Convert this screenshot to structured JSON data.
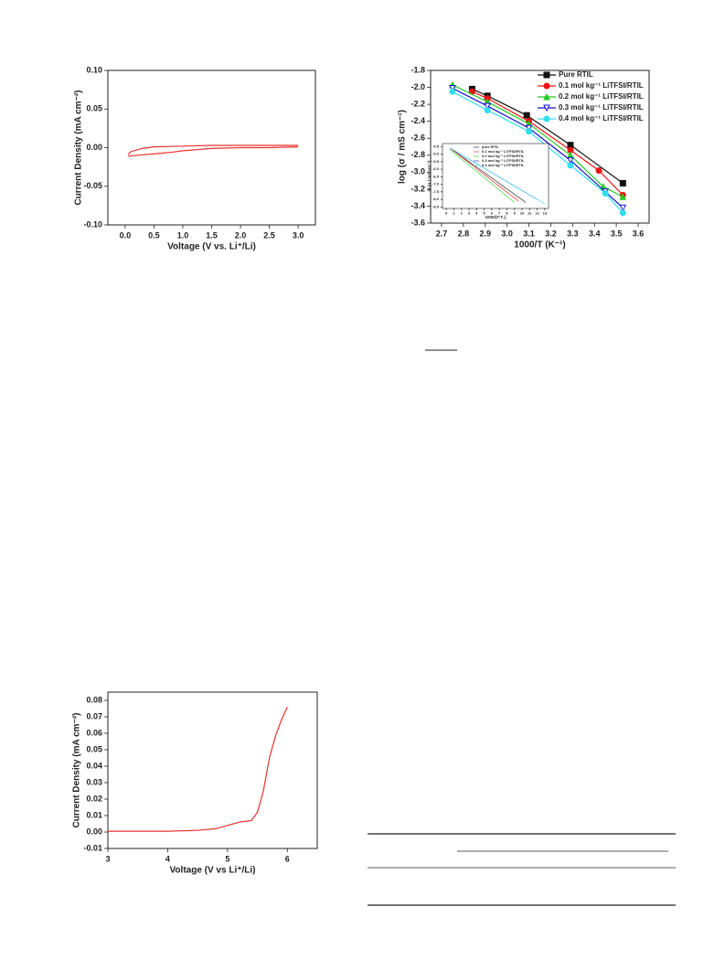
{
  "chart_data": [
    {
      "type": "line",
      "xlabel": "Voltage (V vs. Li⁺/Li)",
      "ylabel": "Current Density (mA cm⁻²)",
      "xlim": [
        -0.3,
        3.3
      ],
      "ylim": [
        -0.1,
        0.1
      ],
      "xticks": [
        {
          "value": 0,
          "label": "0.0"
        },
        0.5,
        {
          "value": 1,
          "label": "1.0"
        },
        1.5,
        {
          "value": 2,
          "label": "2.0"
        },
        2.5,
        {
          "value": 3,
          "label": "3.0"
        }
      ],
      "yticks": [
        {
          "value": -0.1,
          "label": "-0.10"
        },
        -0.05,
        {
          "value": 0,
          "label": "0.00"
        },
        0.05,
        {
          "value": 0.1,
          "label": "0.10"
        }
      ],
      "series": [
        {
          "color": "#e8312f",
          "x": [
            0.05,
            0.1,
            0.3,
            0.5,
            1.0,
            1.5,
            2.0,
            2.5,
            3.0
          ],
          "values": [
            -0.009,
            -0.005,
            -0.001,
            0.001,
            0.002,
            0.003,
            0.003,
            0.003,
            0.003
          ]
        },
        {
          "color": "#e8312f",
          "x": [
            3.0,
            2.5,
            2.0,
            1.5,
            1.0,
            0.8,
            0.5,
            0.2,
            0.05
          ],
          "values": [
            0.001,
            0.0,
            0.0,
            -0.001,
            -0.004,
            -0.006,
            -0.008,
            -0.01,
            -0.011
          ]
        }
      ]
    },
    {
      "type": "line",
      "xlabel": "1000/T (K⁻¹)",
      "ylabel": "log (σ / mS cm⁻¹)",
      "xlim": [
        2.65,
        3.65
      ],
      "ylim": [
        -3.6,
        -1.8
      ],
      "xticks": [
        2.7,
        2.8,
        2.9,
        {
          "value": 3,
          "label": "3.0"
        },
        3.1,
        3.2,
        3.3,
        3.4,
        3.5,
        3.6
      ],
      "yticks": [
        -3.6,
        -3.4,
        -3.2,
        {
          "value": -3,
          "label": "-3.0"
        },
        -2.8,
        -2.6,
        -2.4,
        -2.2,
        {
          "value": -2,
          "label": "-2.0"
        },
        -1.8
      ],
      "legend": "upper right",
      "series": [
        {
          "name": "Pure RTIL",
          "color": "#111111",
          "marker": "square",
          "x": [
            2.84,
            2.91,
            3.09,
            3.29,
            3.53
          ],
          "values": [
            -2.02,
            -2.1,
            -2.33,
            -2.68,
            -3.13
          ]
        },
        {
          "name": "0.1 mol kg⁻¹ LiTFSI/RTIL",
          "color": "#ee1111",
          "marker": "circle",
          "x": [
            2.84,
            2.91,
            3.1,
            3.29,
            3.42,
            3.53
          ],
          "values": [
            -2.05,
            -2.13,
            -2.4,
            -2.74,
            -2.98,
            -3.27
          ]
        },
        {
          "name": "0.2 mol kg⁻¹ LiTFSI/RTIL",
          "color": "#22cc22",
          "marker": "triangle-up",
          "x": [
            2.75,
            2.91,
            3.1,
            3.29,
            3.44,
            3.53
          ],
          "values": [
            -1.97,
            -2.17,
            -2.43,
            -2.8,
            -3.17,
            -3.29
          ]
        },
        {
          "name": "0.3 mol kg⁻¹ LiTFSI/RTIL",
          "color": "#1111cc",
          "marker": "triangle-down",
          "x": [
            2.75,
            2.91,
            3.1,
            3.29,
            3.45,
            3.53
          ],
          "values": [
            -2.01,
            -2.22,
            -2.48,
            -2.86,
            -3.23,
            -3.42
          ]
        },
        {
          "name": "0.4 mol kg⁻¹ LiTFSI/RTIL",
          "color": "#33ddee",
          "marker": "circle",
          "x": [
            2.75,
            2.91,
            3.1,
            3.29,
            3.45,
            3.53
          ],
          "values": [
            -2.05,
            -2.27,
            -2.52,
            -2.92,
            -3.25,
            -3.48
          ]
        }
      ]
    },
    {
      "type": "line",
      "xlabel": "1000/(T-T₀)",
      "ylabel": "ln (σ / mS cm⁻¹)",
      "xlim": [
        -0.5,
        13.5
      ],
      "ylim": [
        -8.6,
        -4.3
      ],
      "xticks": [
        0,
        1,
        2,
        3,
        4,
        5,
        6,
        7,
        8,
        9,
        10,
        11,
        12,
        13
      ],
      "yticks": [
        -4.5,
        {
          "value": -5,
          "label": "-5.0"
        },
        -5.5,
        {
          "value": -6,
          "label": "-6.0"
        },
        -6.5,
        {
          "value": -7,
          "label": "-7.0"
        },
        -7.5,
        {
          "value": -8,
          "label": "-8.0"
        },
        -8.5
      ],
      "series": [
        {
          "name": "pure RTIL",
          "color": "#111111",
          "x": [
            0.5,
            10.5
          ],
          "values": [
            -4.6,
            -8.2
          ]
        },
        {
          "name": "0.1 mol kg⁻¹ LiTFSI/RTIL",
          "color": "#ee1111",
          "x": [
            0.5,
            9.5
          ],
          "values": [
            -4.6,
            -8.1
          ]
        },
        {
          "name": "0.2 mol kg⁻¹ LiTFSI/RTIL",
          "color": "#22cc22",
          "x": [
            0.5,
            9
          ],
          "values": [
            -4.7,
            -8.2
          ]
        },
        {
          "name": "0.3 mol kg⁻¹ LiTFSI/RTIL",
          "color": "#1111cc",
          "x": [
            0.5,
            12
          ],
          "values": [
            -4.6,
            -8.0
          ]
        },
        {
          "name": "0.4 mol kg⁻¹ LiTFSI/RTIL",
          "color": "#33ddee",
          "x": [
            0.5,
            13
          ],
          "values": [
            -4.6,
            -8.3
          ]
        }
      ]
    },
    {
      "type": "line",
      "xlabel": "Voltage (V vs Li⁺/Li)",
      "ylabel": "Current Density (mA cm⁻²)",
      "xlim": [
        3,
        6.5
      ],
      "ylim": [
        -0.01,
        0.085
      ],
      "xticks": [
        3,
        4,
        5,
        6
      ],
      "yticks": [
        -0.01,
        {
          "value": 0,
          "label": "0.00"
        },
        0.01,
        0.02,
        0.03,
        0.04,
        0.05,
        0.06,
        0.07,
        0.08
      ],
      "series": [
        {
          "color": "#e8312f",
          "x": [
            3.0,
            4.0,
            4.5,
            4.8,
            5.0,
            5.2,
            5.4,
            5.5,
            5.6,
            5.7,
            5.8,
            5.9,
            6.0
          ],
          "values": [
            0.0005,
            0.0005,
            0.001,
            0.002,
            0.004,
            0.006,
            0.007,
            0.012,
            0.025,
            0.045,
            0.058,
            0.068,
            0.076
          ]
        }
      ]
    }
  ]
}
